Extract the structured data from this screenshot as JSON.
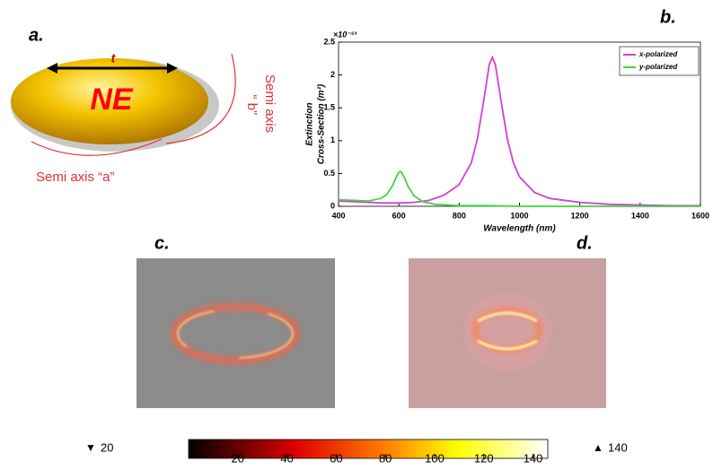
{
  "panel_a": {
    "label": "a.",
    "particle": "NE",
    "thickness": "t",
    "semi_axis_a": "Semi axis “a”",
    "semi_axis_b_word": "Semi axis",
    "semi_axis_b_letter": "“ b”"
  },
  "chart_data": {
    "type": "line",
    "title": "b.",
    "x_label": "Wavelength (nm)",
    "y_label": [
      "Extinction",
      "Cross-Section (m²)"
    ],
    "y_exponent": "×10⁻¹³",
    "xlim": [
      400,
      1600
    ],
    "xticks": [
      400,
      600,
      800,
      1000,
      1200,
      1400,
      1600
    ],
    "ylim": [
      0,
      2.5
    ],
    "yticks": [
      0,
      0.5,
      1,
      1.5,
      2,
      2.5
    ],
    "legend": "top-right",
    "series": [
      {
        "name": "x-polarized",
        "color": "#d43fd4",
        "x": [
          400,
          450,
          500,
          550,
          600,
          650,
          700,
          750,
          800,
          840,
          860,
          880,
          900,
          910,
          920,
          940,
          960,
          980,
          1000,
          1050,
          1100,
          1200,
          1300,
          1400,
          1500,
          1600
        ],
        "values": [
          0.08,
          0.07,
          0.06,
          0.05,
          0.05,
          0.06,
          0.09,
          0.17,
          0.33,
          0.66,
          1.02,
          1.57,
          2.16,
          2.27,
          2.16,
          1.57,
          1.02,
          0.66,
          0.45,
          0.21,
          0.12,
          0.06,
          0.03,
          0.02,
          0.01,
          0.01
        ]
      },
      {
        "name": "y-polarized",
        "color": "#3fd63f",
        "x": [
          400,
          450,
          500,
          540,
          560,
          580,
          590,
          600,
          605,
          610,
          620,
          630,
          650,
          680,
          720,
          800,
          900,
          1000,
          1200,
          1400,
          1600
        ],
        "values": [
          0.1,
          0.09,
          0.08,
          0.12,
          0.18,
          0.32,
          0.43,
          0.52,
          0.53,
          0.51,
          0.42,
          0.31,
          0.16,
          0.07,
          0.03,
          0.01,
          0.01,
          0,
          0,
          0,
          0
        ]
      }
    ]
  },
  "panel_c": {
    "label": "c."
  },
  "panel_d": {
    "label": "d."
  },
  "colorbar": {
    "range": [
      0,
      146
    ],
    "ticks": [
      20,
      40,
      60,
      80,
      100,
      120,
      140
    ],
    "min_marker": "▼",
    "min": 20,
    "max_marker": "▲",
    "max": 140
  }
}
